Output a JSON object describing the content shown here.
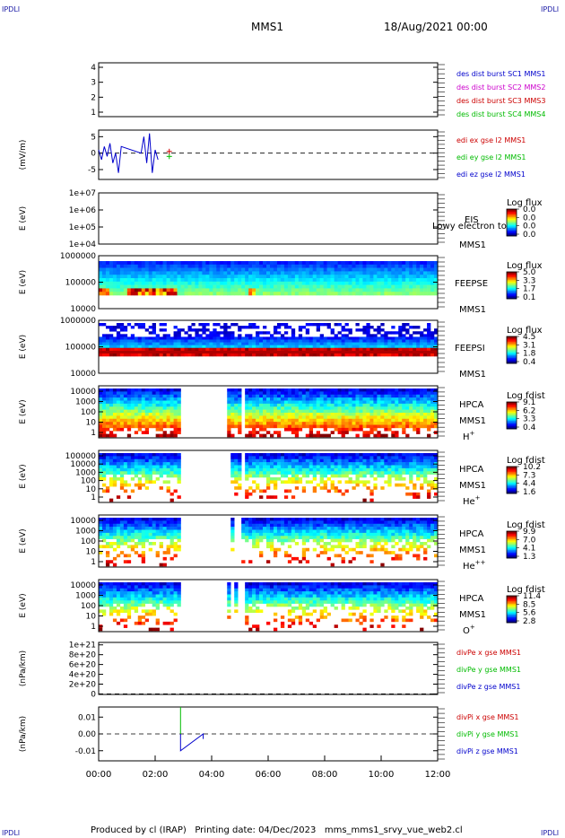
{
  "header": {
    "corner_label": "IPDLI",
    "spacecraft": "MMS1",
    "date_time": "18/Aug/2021 00:00"
  },
  "footer": {
    "text": "Produced by cl (IRAP)   Printing date: 04/Dec/2023   mms_mms1_srvy_vue_web2.cl"
  },
  "colors": {
    "frame": "#000000",
    "blue": "#0000cc",
    "magenta": "#cc00cc",
    "red": "#cc0000",
    "green": "#00bb00",
    "dark_blue": "#000080"
  },
  "chart_data": [
    {
      "type": "line",
      "id": "panel1",
      "ylabel": "",
      "yticks": [
        "1",
        "2",
        "3",
        "4"
      ],
      "ylim": [
        0.7,
        4.3
      ],
      "legend": [
        {
          "label": "des dist burst SC1 MMS1",
          "color": "#0000cc"
        },
        {
          "label": "des dist burst SC2 MMS2",
          "color": "#cc00cc"
        },
        {
          "label": "des dist burst SC3 MMS3",
          "color": "#cc0000"
        },
        {
          "label": "des dist burst SC4 MMS4",
          "color": "#00bb00"
        }
      ],
      "series": []
    },
    {
      "type": "line",
      "id": "panel2",
      "ylabel": "(mV/m)",
      "yticks": [
        "5",
        "0",
        "-5"
      ],
      "ylim": [
        -8,
        7
      ],
      "legend": [
        {
          "label": "edi ex gse l2 MMS1",
          "color": "#cc0000"
        },
        {
          "label": "edi ey gse l2 MMS1",
          "color": "#00bb00"
        },
        {
          "label": "edi ez gse l2 MMS1",
          "color": "#0000cc"
        }
      ],
      "series": [
        {
          "name": "edi ez gse l2 MMS1",
          "x": [
            0.0,
            0.1,
            0.2,
            0.3,
            0.4,
            0.5,
            0.6,
            0.7,
            0.8,
            1.5,
            1.6,
            1.7,
            1.8,
            1.9,
            2.0,
            2.1
          ],
          "y": [
            1,
            -2,
            2,
            -1,
            3,
            -3,
            0,
            -6,
            2,
            0,
            5,
            -3,
            6,
            -6,
            1,
            -2
          ]
        },
        {
          "name": "edi ey gse l2 MMS1",
          "x": [
            2.5
          ],
          "y": [
            -1
          ]
        },
        {
          "name": "edi ex gse l2 MMS1",
          "x": [
            2.5
          ],
          "y": [
            0.5
          ]
        }
      ]
    },
    {
      "type": "heatmap",
      "id": "panel3",
      "ylabel": "E (eV)",
      "yticks": [
        "1e+07",
        "1e+06",
        "1e+05",
        "1e+04"
      ],
      "label_lines": [
        "EIS",
        "MMS1"
      ],
      "overlay_text": "Lowy electron to",
      "colorbar": {
        "title": "Log flux",
        "values": [
          "0.0",
          "0.0",
          "0.0",
          "0.0"
        ]
      }
    },
    {
      "type": "heatmap",
      "id": "panel4",
      "ylabel": "E (eV)",
      "yticks": [
        "1000000",
        "100000",
        "10000"
      ],
      "label_lines": [
        "FEEPSE",
        "MMS1"
      ],
      "colorbar": {
        "title": "Log flux",
        "values": [
          "5.0",
          "3.3",
          "1.7",
          "0.1"
        ]
      }
    },
    {
      "type": "heatmap",
      "id": "panel5",
      "ylabel": "E (eV)",
      "yticks": [
        "1000000",
        "100000",
        "10000"
      ],
      "label_lines": [
        "FEEPSI",
        "MMS1"
      ],
      "colorbar": {
        "title": "Log flux",
        "values": [
          "4.5",
          "3.1",
          "1.8",
          "0.4"
        ]
      }
    },
    {
      "type": "heatmap",
      "id": "panel6",
      "ylabel": "E (eV)",
      "yticks": [
        "10000",
        "1000",
        "100",
        "10",
        "1"
      ],
      "label_lines": [
        "HPCA",
        "MMS1"
      ],
      "species": "H+",
      "colorbar": {
        "title": "Log fdist",
        "values": [
          "9.1",
          "6.2",
          "3.3",
          "0.4"
        ]
      }
    },
    {
      "type": "heatmap",
      "id": "panel7",
      "ylabel": "E (eV)",
      "yticks": [
        "100000",
        "10000",
        "1000",
        "100",
        "10",
        "1"
      ],
      "label_lines": [
        "HPCA",
        "MMS1"
      ],
      "species": "He+",
      "colorbar": {
        "title": "Log fdist",
        "values": [
          "10.2",
          "7.3",
          "4.4",
          "1.6"
        ]
      }
    },
    {
      "type": "heatmap",
      "id": "panel8",
      "ylabel": "E (eV)",
      "yticks": [
        "10000",
        "1000",
        "100",
        "10",
        "1"
      ],
      "label_lines": [
        "HPCA",
        "MMS1"
      ],
      "species": "He++",
      "colorbar": {
        "title": "Log fdist",
        "values": [
          "9.9",
          "7.0",
          "4.1",
          "1.3"
        ]
      }
    },
    {
      "type": "heatmap",
      "id": "panel9",
      "ylabel": "E (eV)",
      "yticks": [
        "10000",
        "1000",
        "100",
        "10",
        "1"
      ],
      "label_lines": [
        "HPCA",
        "MMS1"
      ],
      "species": "O+",
      "colorbar": {
        "title": "Log fdist",
        "values": [
          "11.4",
          "8.5",
          "5.6",
          "2.8"
        ]
      }
    },
    {
      "type": "line",
      "id": "panel10",
      "ylabel": "(nPa/km)",
      "yticks": [
        "1e+21",
        "8e+20",
        "6e+20",
        "4e+20",
        "2e+20",
        "0"
      ],
      "ylim": [
        -1e+19,
        1.05e+21
      ],
      "legend": [
        {
          "label": "divPe x gse MMS1",
          "color": "#cc0000"
        },
        {
          "label": "divPe y gse MMS1",
          "color": "#00bb00"
        },
        {
          "label": "divPe z gse MMS1",
          "color": "#0000cc"
        }
      ],
      "series": []
    },
    {
      "type": "line",
      "id": "panel11",
      "ylabel": "(nPa/km)",
      "yticks": [
        "0.01",
        "0.00",
        "-0.01"
      ],
      "ylim": [
        -0.016,
        0.016
      ],
      "legend": [
        {
          "label": "divPi x gse MMS1",
          "color": "#cc0000"
        },
        {
          "label": "divPi y gse MMS1",
          "color": "#00bb00"
        },
        {
          "label": "divPi z gse MMS1",
          "color": "#0000cc"
        }
      ],
      "series": [
        {
          "name": "divPi y gse MMS1",
          "x": [
            2.9,
            2.9
          ],
          "y": [
            0.0,
            0.016
          ]
        },
        {
          "name": "divPi z gse MMS1",
          "x": [
            2.9,
            2.9,
            3.7,
            3.7
          ],
          "y": [
            0.0,
            -0.01,
            0.0,
            -0.003
          ]
        }
      ]
    }
  ],
  "x_axis": {
    "ticks": [
      "00:00",
      "02:00",
      "04:00",
      "06:00",
      "08:00",
      "10:00",
      "12:00"
    ],
    "xlim_hours": [
      0,
      12
    ]
  }
}
